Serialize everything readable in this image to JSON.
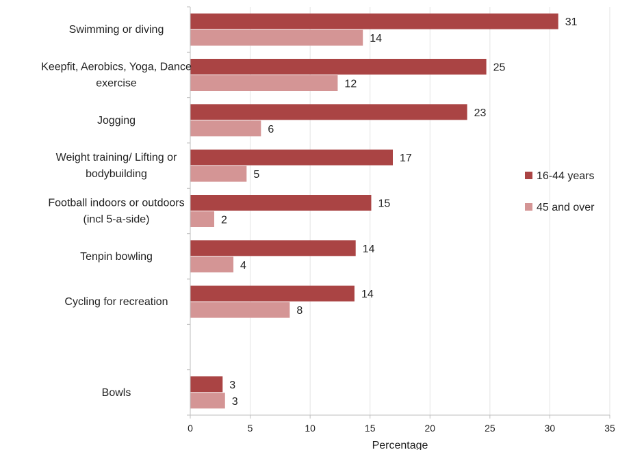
{
  "chart_data": {
    "type": "bar",
    "orientation": "horizontal",
    "categories": [
      [
        "Swimming or diving"
      ],
      [
        "Keepfit, Aerobics, Yoga, Dance",
        "exercise"
      ],
      [
        "Jogging"
      ],
      [
        "Weight training/ Lifting or",
        "bodybuilding"
      ],
      [
        "Football indoors or outdoors",
        "(incl 5-a-side)"
      ],
      [
        "Tenpin bowling"
      ],
      [
        "Cycling for recreation"
      ],
      [
        ""
      ],
      [
        "Bowls"
      ]
    ],
    "series": [
      {
        "name": "16-44 years",
        "values": [
          30.7,
          24.7,
          23.1,
          16.9,
          15.1,
          13.8,
          13.7,
          null,
          2.7
        ],
        "labels": [
          "31",
          "25",
          "23",
          "17",
          "15",
          "14",
          "14",
          "",
          "3"
        ]
      },
      {
        "name": "45 and over",
        "values": [
          14.4,
          12.3,
          5.9,
          4.7,
          2.0,
          3.6,
          8.3,
          null,
          2.9
        ],
        "labels": [
          "14",
          "12",
          "6",
          "5",
          "2",
          "4",
          "8",
          "",
          "3"
        ]
      }
    ],
    "colors": [
      "#aa4444",
      "#d49595"
    ],
    "xlabel": "Percentage",
    "xlim": [
      0,
      35
    ],
    "xticks": [
      0,
      5,
      10,
      15,
      20,
      25,
      30,
      35
    ],
    "grid": "vertical",
    "legend": "right"
  }
}
